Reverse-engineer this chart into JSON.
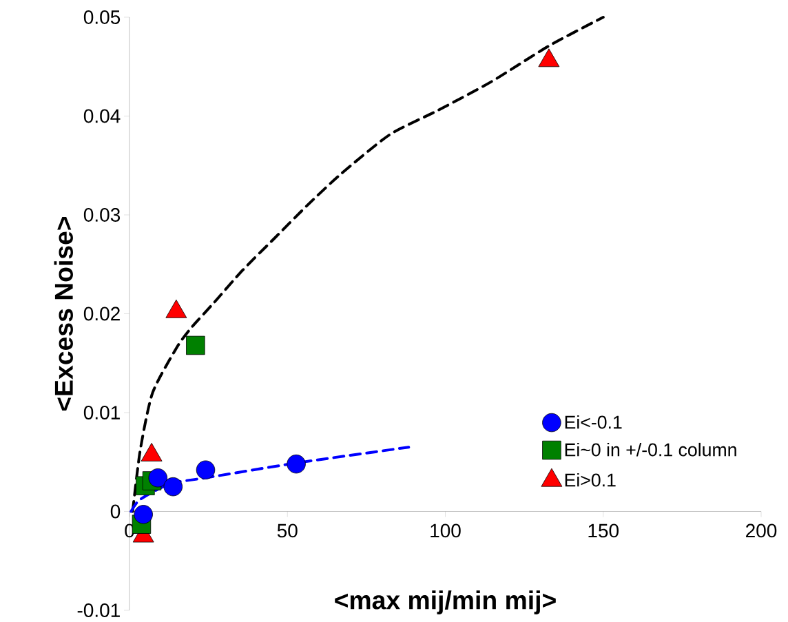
{
  "chart_data": {
    "type": "scatter",
    "xlabel": "<max mij/min mij>",
    "ylabel": "<Excess Noise>",
    "xlim": [
      0,
      200
    ],
    "ylim": [
      -0.01,
      0.05
    ],
    "xticks": [
      0,
      50,
      100,
      150,
      200
    ],
    "yticks": [
      -0.01,
      0,
      0.01,
      0.02,
      0.03,
      0.04,
      0.05
    ],
    "grid": false,
    "legend": "bottom right",
    "series": [
      {
        "name": "Ei<-0.1",
        "color": "#0000ff",
        "marker": "circle",
        "x": [
          4.4,
          9.0,
          13.8,
          24.1,
          52.8
        ],
        "values": [
          -0.0003,
          0.0034,
          0.0025,
          0.0042,
          0.0048
        ]
      },
      {
        "name": "Ei~0 in +/-0.1 column",
        "color": "#008000",
        "marker": "square",
        "x": [
          3.8,
          5.0,
          7.1,
          20.9
        ],
        "values": [
          -0.0013,
          0.0026,
          0.0031,
          0.0168
        ]
      },
      {
        "name": "Ei>0.1",
        "color": "#ff0000",
        "marker": "triangle",
        "x": [
          4.4,
          7.0,
          14.8,
          132.8
        ],
        "values": [
          -0.0025,
          0.0057,
          0.0202,
          0.0456
        ]
      },
      {
        "type": "line",
        "color": "#000000",
        "marker": "none",
        "line_style": "dashed",
        "x": [
          1.0,
          3.4,
          7.3,
          15.0,
          19.6,
          26.7,
          35.8,
          46.1,
          56.4,
          66.8,
          82.3,
          97.8,
          114.7,
          132.8,
          150.0
        ],
        "values": [
          0.0,
          0.0062,
          0.012,
          0.0166,
          0.0186,
          0.0211,
          0.0244,
          0.0277,
          0.031,
          0.0341,
          0.0381,
          0.0406,
          0.0435,
          0.0471,
          0.05
        ]
      },
      {
        "type": "line",
        "color": "#0000ff",
        "marker": "none",
        "line_style": "dashed",
        "x": [
          0.5,
          3.3,
          12.8,
          24.1,
          52.8,
          88.4
        ],
        "values": [
          0.0,
          0.0012,
          0.0028,
          0.0034,
          0.0049,
          0.0065
        ]
      }
    ]
  }
}
